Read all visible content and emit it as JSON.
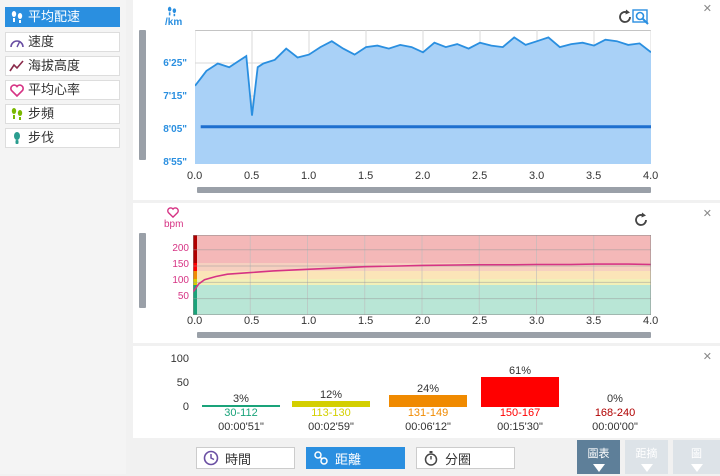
{
  "sidebar": {
    "items": [
      {
        "label": "平均配速",
        "icon": "footprints-icon",
        "active": true
      },
      {
        "label": "速度",
        "icon": "speedometer-icon",
        "active": false
      },
      {
        "label": "海拔高度",
        "icon": "elevation-icon",
        "active": false
      },
      {
        "label": "平均心率",
        "icon": "heart-icon",
        "active": false
      },
      {
        "label": "步頻",
        "icon": "footprints-icon",
        "active": false
      },
      {
        "label": "步伐",
        "icon": "footprint-icon",
        "active": false
      }
    ]
  },
  "pace_panel": {
    "unit": "/km",
    "y_ticks": [
      "6'25\"",
      "7'15\"",
      "8'05\"",
      "8'55\""
    ],
    "x_ticks": [
      "0.0",
      "0.5",
      "1.0",
      "1.5",
      "2.0",
      "2.5",
      "3.0",
      "3.5",
      "4.0"
    ],
    "colors": {
      "line": "#2a8fe0",
      "fill": "#a9d1f7"
    }
  },
  "hr_panel": {
    "unit": "bpm",
    "y_ticks": [
      "200",
      "150",
      "100",
      "50"
    ],
    "x_ticks": [
      "0.0",
      "0.5",
      "1.0",
      "1.5",
      "2.0",
      "2.5",
      "3.0",
      "3.5",
      "4.0"
    ],
    "colors": {
      "line": "#d63384"
    }
  },
  "zones_panel": {
    "y_ticks": [
      "100",
      "50",
      "0"
    ],
    "zones": [
      {
        "pct": "3%",
        "range": "30-112",
        "time": "00:00'51\"",
        "color": "#1aa37a",
        "value": 3
      },
      {
        "pct": "12%",
        "range": "113-130",
        "time": "00:02'59\"",
        "color": "#d4cf00",
        "value": 12
      },
      {
        "pct": "24%",
        "range": "131-149",
        "time": "00:06'12\"",
        "color": "#f08a00",
        "value": 24
      },
      {
        "pct": "61%",
        "range": "150-167",
        "time": "00:15'30\"",
        "color": "#ff0000",
        "value": 61
      },
      {
        "pct": "0%",
        "range": "168-240",
        "time": "00:00'00\"",
        "color": "#b00000",
        "value": 0
      }
    ]
  },
  "toolbar": {
    "time_label": "時間",
    "distance_label": "距離",
    "laps_label": "分圈"
  },
  "right_buttons": {
    "chart_label": "圖表",
    "split_label": "距摘",
    "last_label": "圖"
  },
  "chart_data": [
    {
      "type": "area",
      "title": "",
      "xlabel": "",
      "ylabel": "/km",
      "x_range": [
        0.0,
        4.0
      ],
      "y_ticks": [
        "6'25\"",
        "7'15\"",
        "8'05\"",
        "8'55\""
      ],
      "series": [
        {
          "name": "",
          "x": [
            0.0,
            0.05,
            0.1,
            0.2,
            0.3,
            0.4,
            0.45,
            0.5,
            0.55,
            0.6,
            0.7,
            0.8,
            0.9,
            1.0,
            1.1,
            1.2,
            1.3,
            1.4,
            1.5,
            1.6,
            1.7,
            1.8,
            1.9,
            2.0,
            2.1,
            2.2,
            2.3,
            2.4,
            2.5,
            2.6,
            2.7,
            2.8,
            2.9,
            3.0,
            3.1,
            3.2,
            3.3,
            3.4,
            3.5,
            3.6,
            3.7,
            3.8,
            3.9,
            4.0
          ],
          "y_sec_per_km": [
            430,
            420,
            410,
            400,
            405,
            395,
            390,
            470,
            405,
            400,
            395,
            380,
            392,
            388,
            378,
            370,
            380,
            388,
            378,
            376,
            380,
            375,
            378,
            385,
            372,
            378,
            374,
            380,
            372,
            376,
            378,
            365,
            375,
            370,
            365,
            378,
            374,
            372,
            376,
            368,
            370,
            375,
            373,
            385
          ]
        },
        {
          "name": "",
          "x": [
            0.05,
            4.0
          ],
          "y_sec_per_km": [
            485,
            485
          ]
        }
      ]
    },
    {
      "type": "line",
      "title": "",
      "xlabel": "",
      "ylabel": "bpm",
      "x_range": [
        0.0,
        4.0
      ],
      "ylim": [
        0,
        240
      ],
      "series": [
        {
          "name": "",
          "x": [
            0.0,
            0.05,
            0.1,
            0.2,
            0.3,
            0.5,
            0.7,
            1.0,
            1.2,
            1.5,
            1.8,
            2.0,
            2.3,
            2.5,
            2.8,
            3.0,
            3.3,
            3.5,
            3.8,
            4.0
          ],
          "y": [
            70,
            95,
            108,
            118,
            125,
            130,
            135,
            140,
            143,
            148,
            150,
            152,
            153,
            154,
            154,
            155,
            155,
            156,
            156,
            155
          ]
        }
      ]
    },
    {
      "type": "bar",
      "title": "",
      "categories": [
        "30-112",
        "113-130",
        "131-149",
        "150-167",
        "168-240"
      ],
      "values": [
        3,
        12,
        24,
        61,
        0
      ],
      "ylim": [
        0,
        100
      ]
    }
  ]
}
